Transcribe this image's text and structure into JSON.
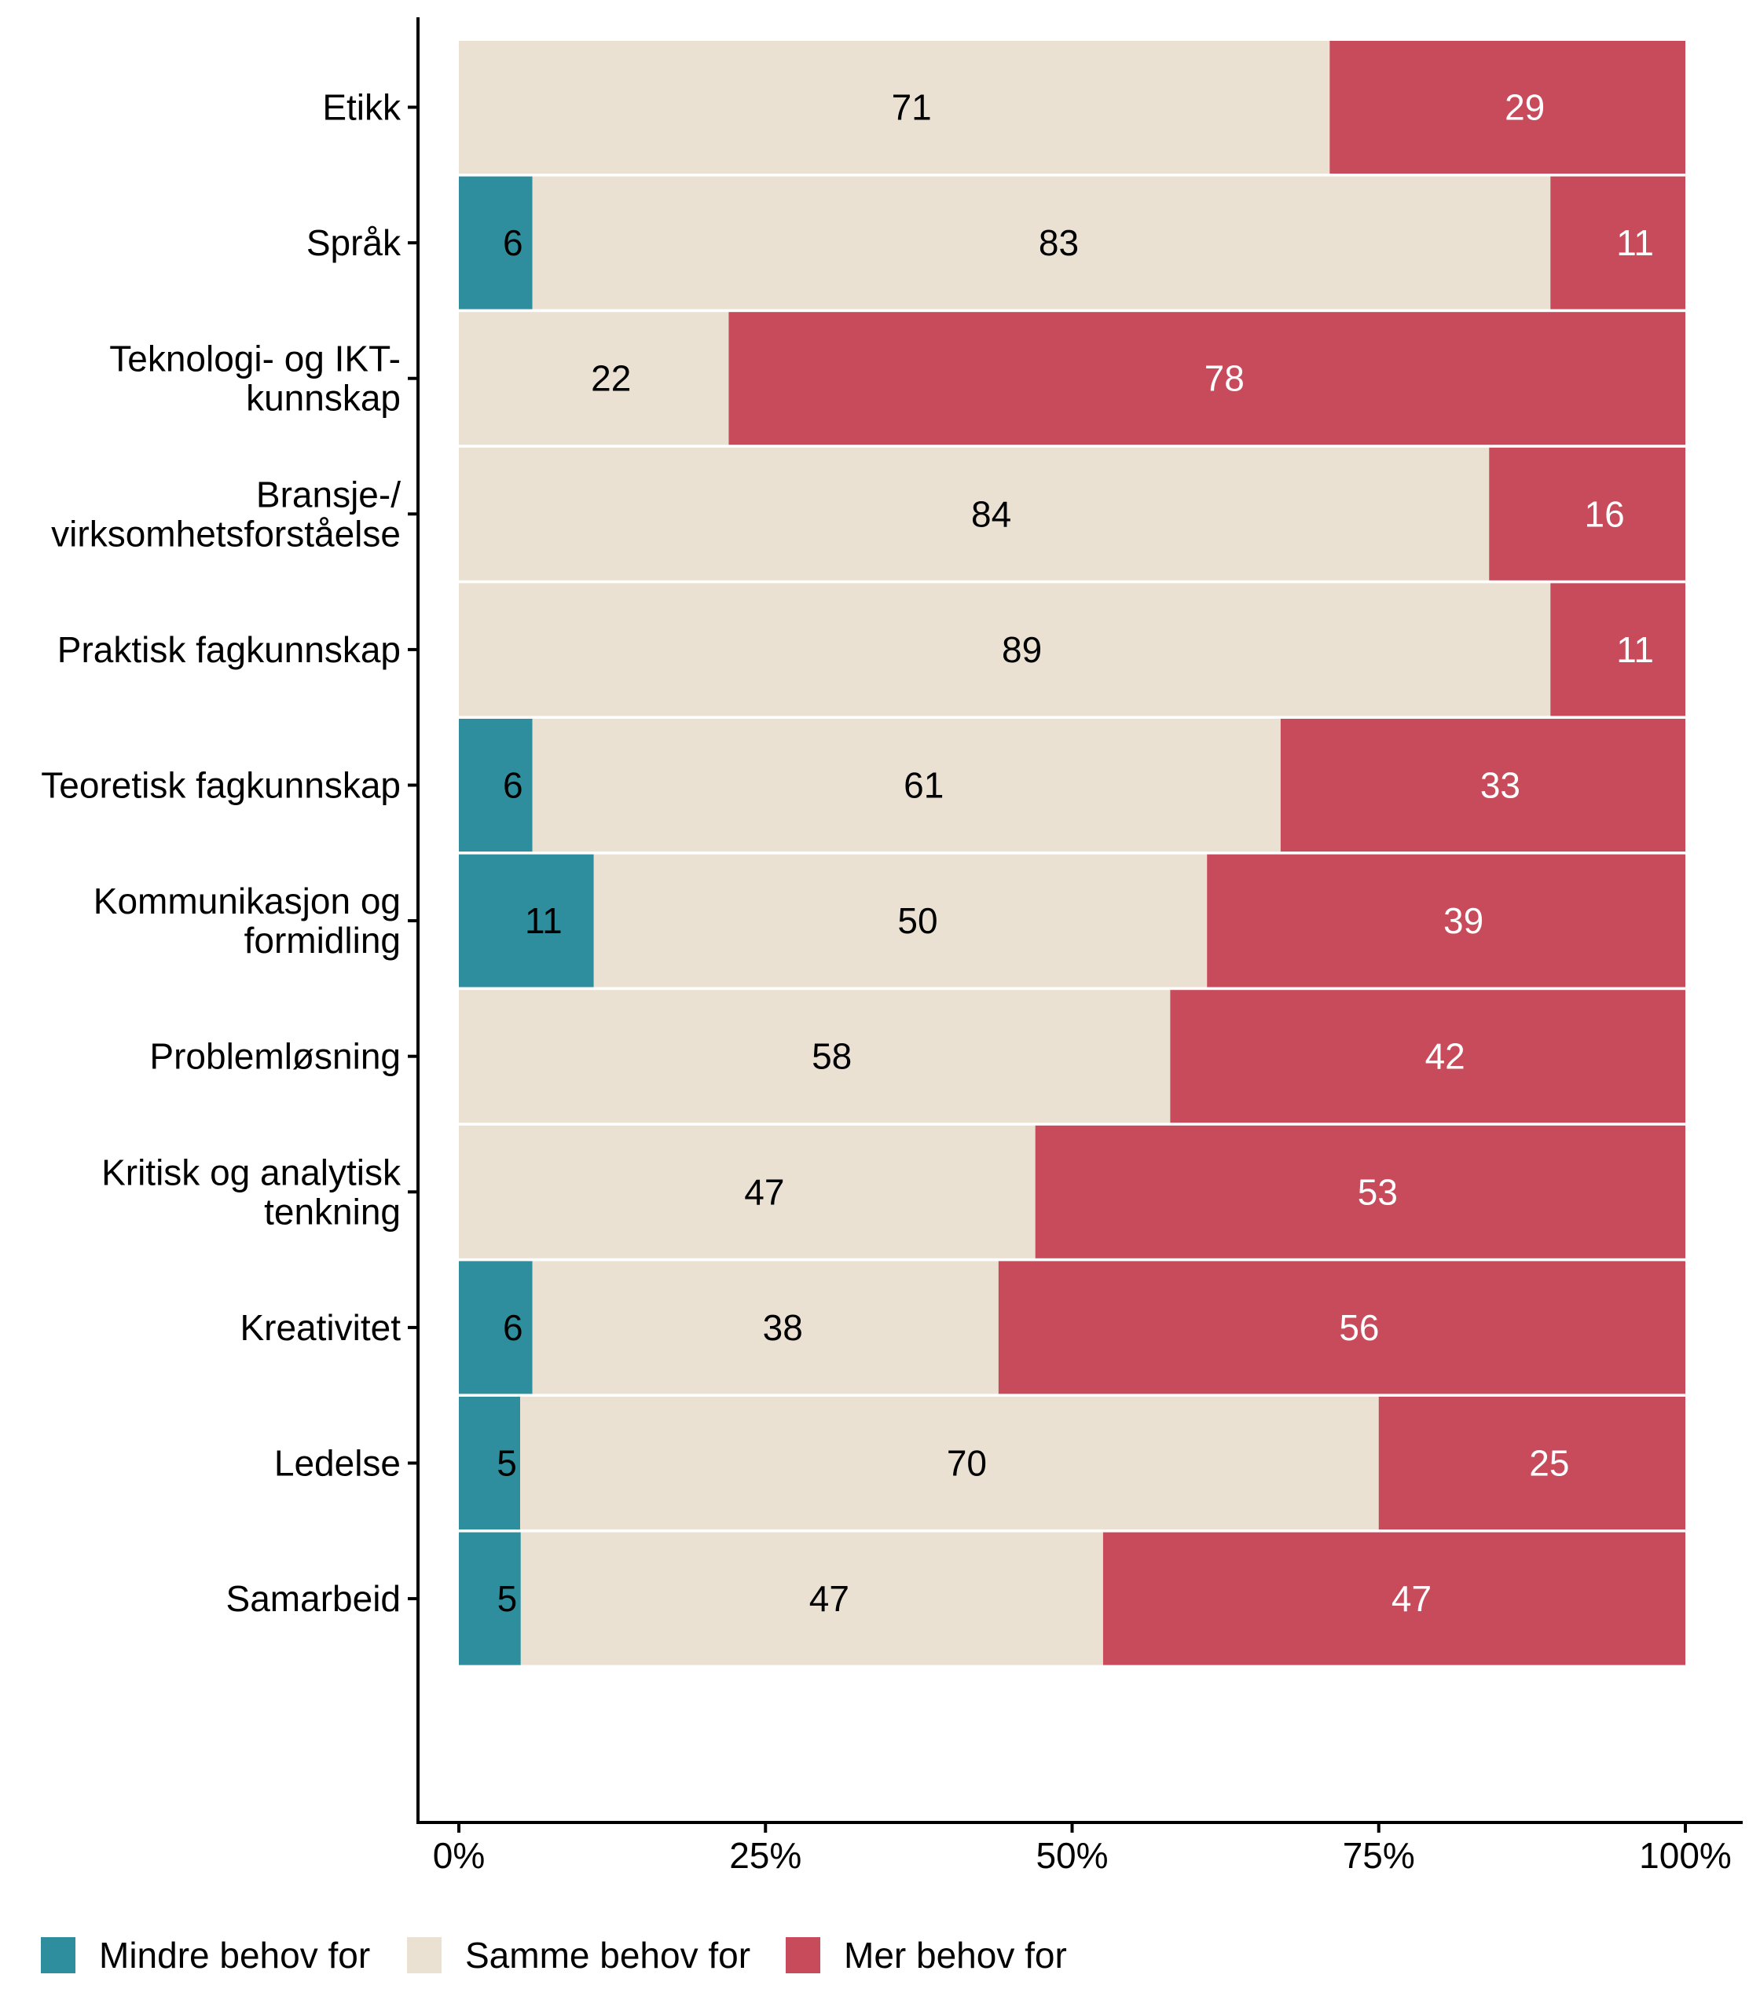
{
  "chart_data": {
    "type": "bar",
    "orientation": "horizontal",
    "stacked": true,
    "percent": true,
    "title": "",
    "xlabel": "",
    "ylabel": "",
    "xlim": [
      0,
      100
    ],
    "x_ticks": [
      "0%",
      "25%",
      "50%",
      "75%",
      "100%"
    ],
    "x_tick_values": [
      0,
      25,
      50,
      75,
      100
    ],
    "grid": false,
    "legend_position": "bottom",
    "categories": [
      [
        "Etikk"
      ],
      [
        "Språk"
      ],
      [
        "Teknologi- og IKT-",
        "kunnskap"
      ],
      [
        "Bransje-/",
        "virksomhetsforståelse"
      ],
      [
        "Praktisk fagkunnskap"
      ],
      [
        "Teoretisk fagkunnskap"
      ],
      [
        "Kommunikasjon og",
        "formidling"
      ],
      [
        "Problemløsning"
      ],
      [
        "Kritisk og analytisk",
        "tenkning"
      ],
      [
        "Kreativitet"
      ],
      [
        "Ledelse"
      ],
      [
        "Samarbeid"
      ]
    ],
    "series": [
      {
        "name": "Mindre behov for",
        "color": "#2E8E9E",
        "label_color": "#000000",
        "values": [
          0,
          6,
          0,
          0,
          0,
          6,
          11,
          0,
          0,
          6,
          5,
          5
        ]
      },
      {
        "name": "Samme behov for",
        "color": "#EBE1D2",
        "label_color": "#000000",
        "values": [
          71,
          83,
          22,
          84,
          89,
          61,
          50,
          58,
          47,
          38,
          70,
          47
        ]
      },
      {
        "name": "Mer behov for",
        "color": "#C84B5B",
        "label_color": "#FFFFFF",
        "values": [
          29,
          11,
          78,
          16,
          11,
          33,
          39,
          42,
          53,
          56,
          25,
          47
        ]
      }
    ]
  }
}
